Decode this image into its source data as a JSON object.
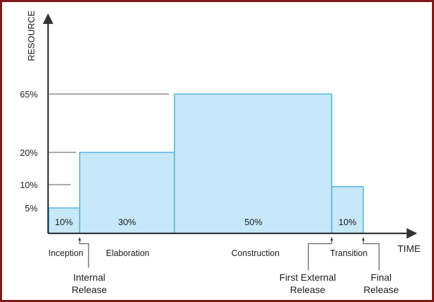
{
  "chart_data": {
    "type": "bar",
    "y_axis_label": "RESOURCE",
    "x_axis_label": "TIME",
    "y_tick_labels": [
      "65%",
      "20%",
      "10%",
      "5%"
    ],
    "phases": [
      {
        "name": "Inception",
        "time_share": "10%",
        "resource": 5
      },
      {
        "name": "Elaboration",
        "time_share": "30%",
        "resource": 20
      },
      {
        "name": "Construction",
        "time_share": "50%",
        "resource": 65
      },
      {
        "name": "Transition",
        "time_share": "10%",
        "resource": 10
      }
    ],
    "milestones": [
      {
        "line1": "Internal",
        "line2": "Release"
      },
      {
        "line1": "First External",
        "line2": "Release"
      },
      {
        "line1": "Final",
        "line2": "Release"
      }
    ],
    "colors": {
      "bar_fill": "#c6e8f8",
      "bar_stroke": "#4fb3e3",
      "axis": "#333333",
      "frame": "#7a1a1a"
    }
  }
}
